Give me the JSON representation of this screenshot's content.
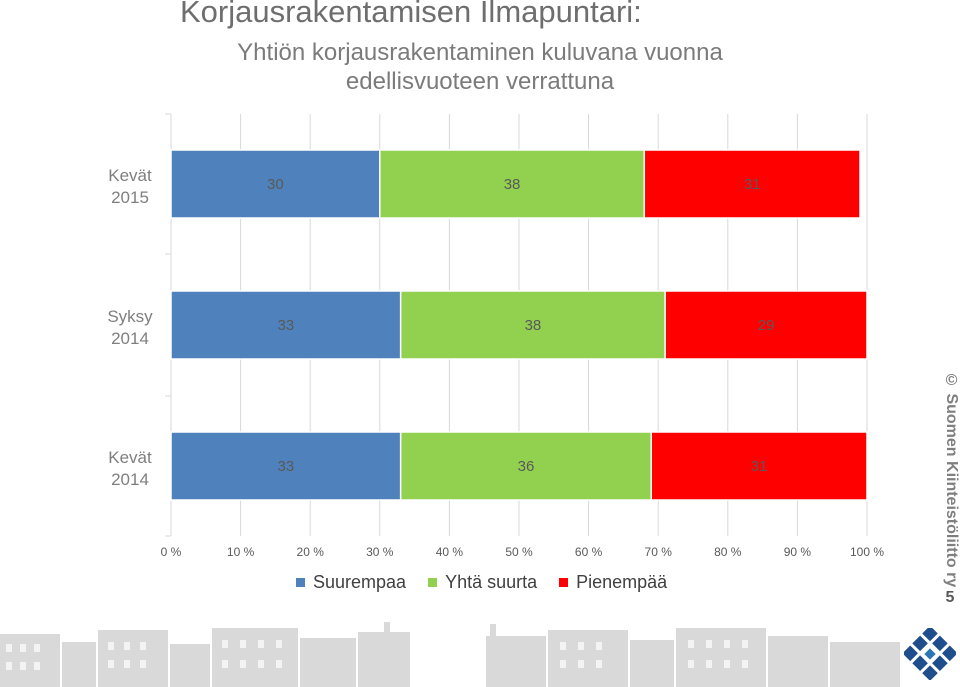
{
  "title": "Korjausrakentamisen Ilmapuntari:",
  "subtitle_line1": "Yhtiön korjausrakentaminen kuluvana vuonna",
  "subtitle_line2": "edellisvuoteen verrattuna",
  "copyright": "© Suomen Kiinteistöliitto ry",
  "page_number": "5",
  "chart_data": {
    "type": "bar",
    "orientation": "horizontal",
    "stacked": "100%",
    "categories": [
      {
        "line1": "Kevät",
        "line2": "2015"
      },
      {
        "line1": "Syksy",
        "line2": "2014"
      },
      {
        "line1": "Kevät",
        "line2": "2014"
      }
    ],
    "series": [
      {
        "name": "Suurempaa",
        "color": "#4f81bd",
        "values": [
          30,
          33,
          33
        ]
      },
      {
        "name": "Yhtä suurta",
        "color": "#92d050",
        "values": [
          38,
          38,
          36
        ]
      },
      {
        "name": "Pienempää",
        "color": "#ff0000",
        "values": [
          31,
          29,
          31
        ]
      }
    ],
    "xticks": [
      "0 %",
      "10 %",
      "20 %",
      "30 %",
      "40 %",
      "50 %",
      "60 %",
      "70 %",
      "80 %",
      "90 %",
      "100 %"
    ],
    "xlim": [
      0,
      100
    ],
    "legend_position": "bottom",
    "grid": true
  }
}
